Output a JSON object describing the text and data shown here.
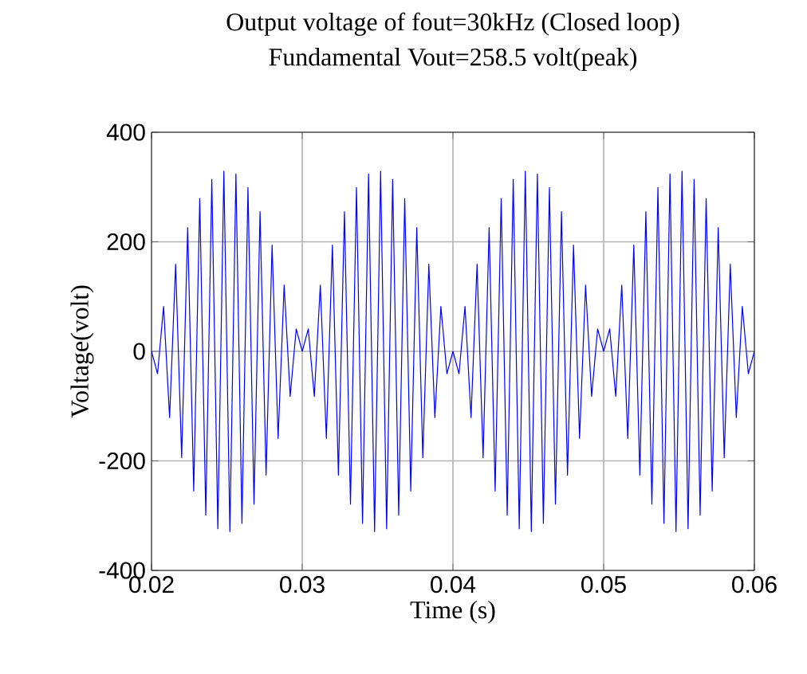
{
  "chart_data": {
    "type": "line",
    "title": "Output voltage of fout=30kHz (Closed loop)",
    "subtitle": "Fundamental Vout=258.5 volt(peak)",
    "xlabel": "Time (s)",
    "ylabel": "Voltage(volt)",
    "xlim": [
      0.02,
      0.06
    ],
    "ylim": [
      -400,
      400
    ],
    "xticks": [
      0.02,
      0.03,
      0.04,
      0.05,
      0.06
    ],
    "yticks": [
      -400,
      -200,
      0,
      200,
      400
    ],
    "grid": true,
    "marker": "none",
    "line_style": "solid",
    "series": [
      {
        "color": "#0000ff",
        "x": [
          0.02,
          0.0204,
          0.0208,
          0.0212,
          0.0216,
          0.022,
          0.0224,
          0.0228,
          0.0232,
          0.0236,
          0.024,
          0.0244,
          0.0248,
          0.0252,
          0.0256,
          0.026,
          0.0264,
          0.0268,
          0.0272,
          0.0276,
          0.028,
          0.0284,
          0.0288,
          0.0292,
          0.0296,
          0.03,
          0.0304,
          0.0308,
          0.0312,
          0.0316,
          0.032,
          0.0324,
          0.0328,
          0.0332,
          0.0336,
          0.034,
          0.0344,
          0.0348,
          0.0352,
          0.0356,
          0.036,
          0.0364,
          0.0368,
          0.0372,
          0.0376,
          0.038,
          0.0384,
          0.0388,
          0.0392,
          0.0396,
          0.04,
          0.0404,
          0.0408,
          0.0412,
          0.0416,
          0.042,
          0.0424,
          0.0428,
          0.0432,
          0.0436,
          0.044,
          0.0444,
          0.0448,
          0.0452,
          0.0456,
          0.046,
          0.0464,
          0.0468,
          0.0472,
          0.0476,
          0.048,
          0.0484,
          0.0488,
          0.0492,
          0.0496,
          0.05,
          0.0504,
          0.0508,
          0.0512,
          0.0516,
          0.052,
          0.0524,
          0.0528,
          0.0532,
          0.0536,
          0.054,
          0.0544,
          0.0548,
          0.0552,
          0.0556,
          0.056,
          0.0564,
          0.0568,
          0.0572,
          0.0576,
          0.058,
          0.0584,
          0.0588,
          0.0592,
          0.0596,
          0.06
        ],
        "values": [
          0,
          -41,
          82,
          -121,
          159,
          -194,
          226,
          -255,
          279,
          -299,
          314,
          -324,
          329,
          -329,
          324,
          -314,
          299,
          -279,
          255,
          -226,
          194,
          -159,
          121,
          -82,
          41,
          0,
          41,
          -82,
          121,
          -159,
          194,
          -226,
          255,
          -279,
          299,
          -314,
          324,
          -329,
          329,
          -324,
          314,
          -299,
          279,
          -255,
          226,
          -194,
          159,
          -121,
          82,
          -41,
          0,
          -41,
          82,
          -121,
          159,
          -194,
          226,
          -255,
          279,
          -299,
          314,
          -324,
          329,
          -329,
          324,
          -314,
          299,
          -279,
          255,
          -226,
          194,
          -159,
          121,
          -82,
          41,
          0,
          41,
          -82,
          121,
          -159,
          194,
          -226,
          255,
          -279,
          299,
          -314,
          324,
          -329,
          329,
          -324,
          314,
          -299,
          279,
          -255,
          226,
          -194,
          159,
          -121,
          82,
          -41,
          0
        ]
      }
    ]
  }
}
